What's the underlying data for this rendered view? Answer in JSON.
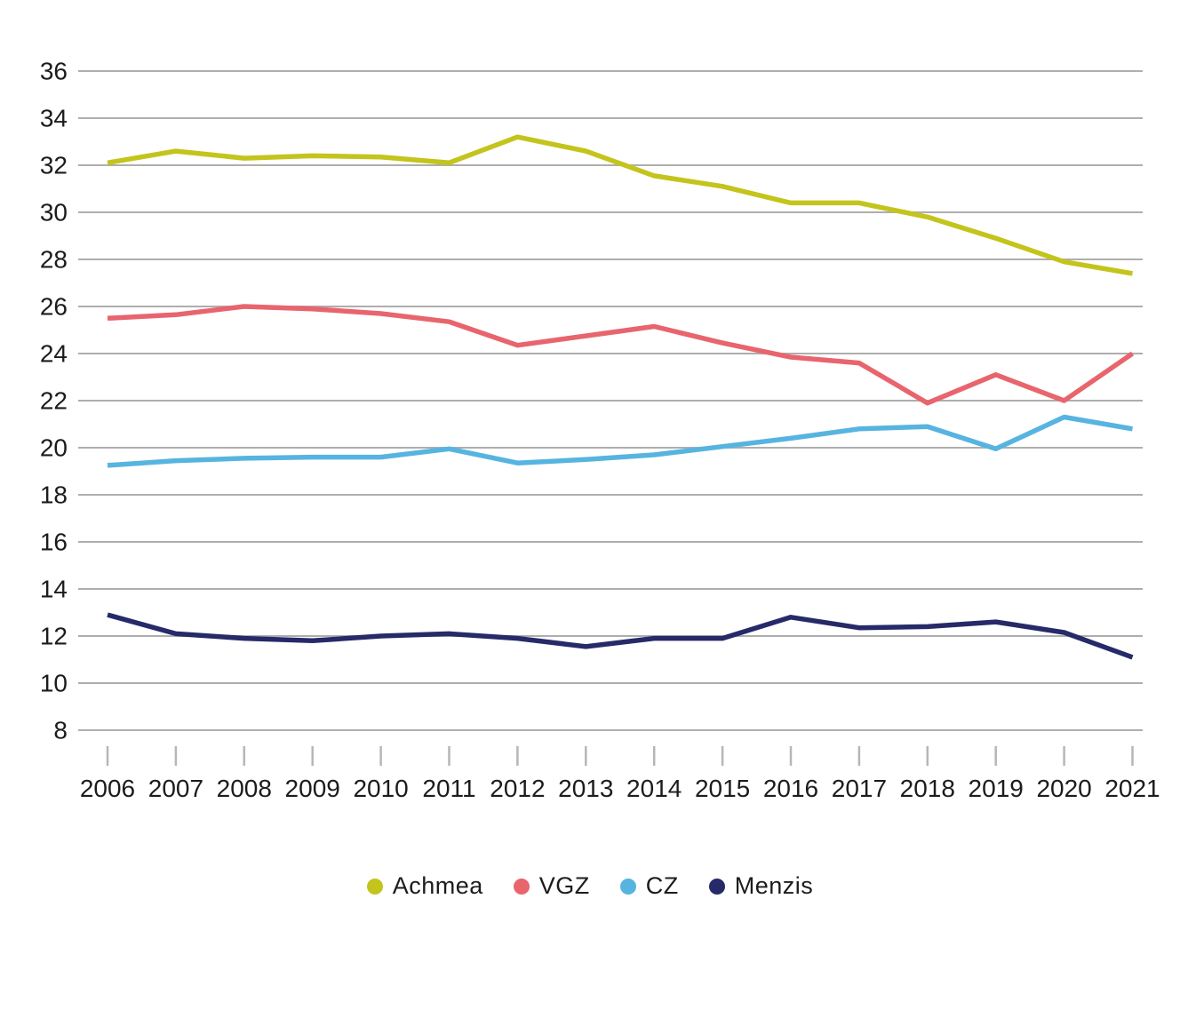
{
  "chart_data": {
    "type": "line",
    "title": "",
    "xlabel": "",
    "ylabel": "",
    "x": [
      2006,
      2007,
      2008,
      2009,
      2010,
      2011,
      2012,
      2013,
      2014,
      2015,
      2016,
      2017,
      2018,
      2019,
      2020,
      2021
    ],
    "series": [
      {
        "name": "Achmea",
        "color": "#c3c41c",
        "values": [
          32.1,
          32.6,
          32.3,
          32.4,
          32.35,
          32.1,
          33.2,
          32.6,
          31.55,
          31.1,
          30.4,
          30.4,
          29.8,
          28.9,
          27.9,
          27.4
        ]
      },
      {
        "name": "VGZ",
        "color": "#e8656e",
        "values": [
          25.5,
          25.65,
          26.0,
          25.9,
          25.7,
          25.35,
          24.35,
          24.75,
          25.15,
          24.45,
          23.85,
          23.6,
          21.9,
          23.1,
          22.0,
          24.0
        ]
      },
      {
        "name": "CZ",
        "color": "#57b4e0",
        "values": [
          19.25,
          19.45,
          19.55,
          19.6,
          19.6,
          19.95,
          19.35,
          19.5,
          19.7,
          20.05,
          20.4,
          20.8,
          20.9,
          19.95,
          21.3,
          20.8
        ]
      },
      {
        "name": "Menzis",
        "color": "#262a69",
        "values": [
          12.9,
          12.1,
          11.9,
          11.8,
          12.0,
          12.1,
          11.9,
          11.55,
          11.9,
          11.9,
          12.8,
          12.35,
          12.4,
          12.6,
          12.15,
          11.1
        ]
      }
    ],
    "yticks": [
      36,
      34,
      32,
      30,
      28,
      26,
      24,
      22,
      20,
      18,
      16,
      14,
      12,
      10,
      8
    ],
    "ylim": [
      8,
      36
    ],
    "grid": true,
    "legend_position": "bottom",
    "colors": {
      "grid": "#aeaeae",
      "tick": "#b6b6b6",
      "text": "#1c1c1c",
      "background": "#ffffff"
    }
  }
}
